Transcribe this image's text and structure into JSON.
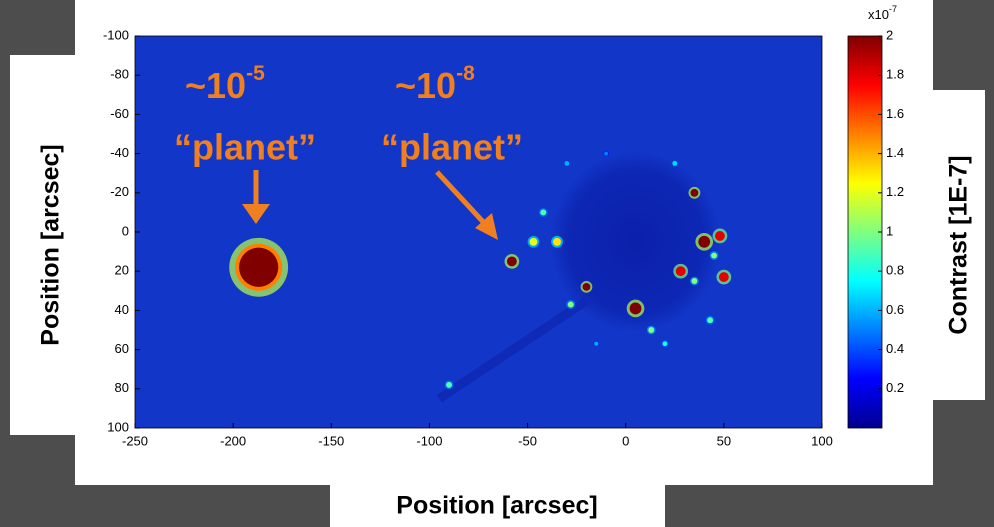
{
  "chart_data": {
    "type": "heatmap",
    "x_label": "Position  [arcsec]",
    "y_label": "Position  [arcsec]",
    "colorbar_label": "Contrast [1E-7]",
    "colorbar_multiplier": {
      "base": "x10",
      "exponent": "-7"
    },
    "xlim": [
      -250,
      100
    ],
    "xticks": [
      -250,
      -200,
      -150,
      -100,
      -50,
      0,
      50,
      100
    ],
    "ylim": [
      -100,
      100
    ],
    "yticks": [
      -100,
      -80,
      -60,
      -40,
      -20,
      0,
      20,
      40,
      60,
      80,
      100
    ],
    "clim": [
      0,
      2
    ],
    "cticks": [
      0.2,
      0.4,
      0.6,
      0.8,
      1,
      1.2,
      1.4,
      1.6,
      1.8,
      2
    ],
    "colormap": "jet",
    "background_color": "#1236c8",
    "annotations": [
      {
        "base": "~10",
        "exponent": "-5",
        "label": "“planet”"
      },
      {
        "base": "~10",
        "exponent": "-8",
        "label": "“planet”"
      }
    ],
    "spots": [
      {
        "x": -187,
        "y": 18,
        "value": 2,
        "size": 10
      },
      {
        "x": -58,
        "y": 15,
        "value": 2,
        "size": 2.5
      },
      {
        "x": -35,
        "y": 5,
        "value": 1.3,
        "size": 2
      },
      {
        "x": -47,
        "y": 5,
        "value": 1.2,
        "size": 2
      },
      {
        "x": -42,
        "y": -10,
        "value": 0.9,
        "size": 1.5
      },
      {
        "x": -30,
        "y": -35,
        "value": 0.6,
        "size": 1.2
      },
      {
        "x": -20,
        "y": 28,
        "value": 2,
        "size": 2
      },
      {
        "x": -28,
        "y": 37,
        "value": 1,
        "size": 1.5
      },
      {
        "x": 5,
        "y": 39,
        "value": 2,
        "size": 3
      },
      {
        "x": 13,
        "y": 50,
        "value": 1,
        "size": 1.5
      },
      {
        "x": 20,
        "y": 57,
        "value": 0.8,
        "size": 1.2
      },
      {
        "x": 28,
        "y": 20,
        "value": 1.8,
        "size": 2.5
      },
      {
        "x": 35,
        "y": 25,
        "value": 1,
        "size": 1.5
      },
      {
        "x": 43,
        "y": 45,
        "value": 0.9,
        "size": 1.5
      },
      {
        "x": 50,
        "y": 23,
        "value": 1.8,
        "size": 2.5
      },
      {
        "x": 45,
        "y": 12,
        "value": 1,
        "size": 1.5
      },
      {
        "x": 40,
        "y": 5,
        "value": 2,
        "size": 3
      },
      {
        "x": 48,
        "y": 2,
        "value": 1.8,
        "size": 2.5
      },
      {
        "x": 35,
        "y": -20,
        "value": 2,
        "size": 2
      },
      {
        "x": 25,
        "y": -35,
        "value": 0.7,
        "size": 1.2
      },
      {
        "x": -10,
        "y": -40,
        "value": 0.5,
        "size": 1
      },
      {
        "x": -90,
        "y": 78,
        "value": 0.9,
        "size": 1.5
      },
      {
        "x": -15,
        "y": 57,
        "value": 0.6,
        "size": 1
      }
    ]
  }
}
